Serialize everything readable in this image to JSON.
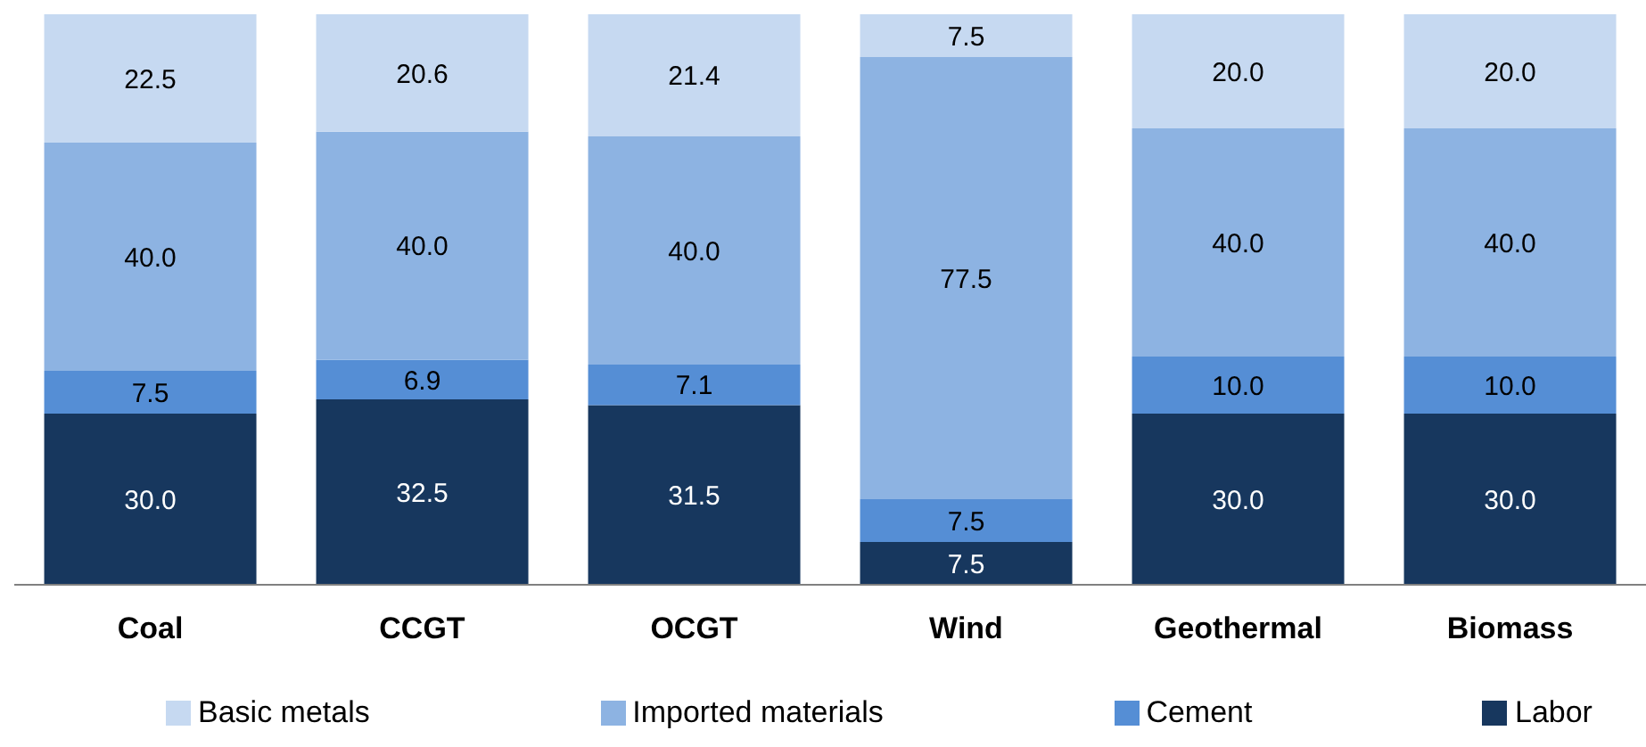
{
  "chart_data": {
    "type": "bar",
    "stacked": true,
    "categories": [
      "Coal",
      "CCGT",
      "OCGT",
      "Wind",
      "Geothermal",
      "Biomass"
    ],
    "series": [
      {
        "name": "Labor",
        "color": "#17375e",
        "values": [
          30,
          32.5,
          31.5,
          7.5,
          30,
          30
        ],
        "value_labels": [
          "30.0",
          "32.5",
          "31.5",
          "7.5",
          "30.0",
          "30.0"
        ]
      },
      {
        "name": "Cement",
        "color": "#558ed5",
        "values": [
          7.5,
          6.9,
          7.1,
          7.5,
          10,
          10
        ],
        "value_labels": [
          "7.5",
          "6.9",
          "7.1",
          "7.5",
          "10.0",
          "10.0"
        ]
      },
      {
        "name": "Imported materials",
        "color": "#8db3e2",
        "values": [
          40,
          40,
          40,
          77.5,
          40,
          40
        ],
        "value_labels": [
          "40.0",
          "40.0",
          "40.0",
          "77.5",
          "40.0",
          "40.0"
        ]
      },
      {
        "name": "Basic metals",
        "color": "#c6d9f1",
        "values": [
          22.5,
          20.6,
          21.4,
          7.5,
          20,
          20
        ],
        "value_labels": [
          "22.5",
          "20.6",
          "21.4",
          "7.5",
          "20.0",
          "20.0"
        ]
      }
    ],
    "ylim": [
      0,
      100
    ],
    "tick_labels": "x",
    "legend": "bottom"
  }
}
